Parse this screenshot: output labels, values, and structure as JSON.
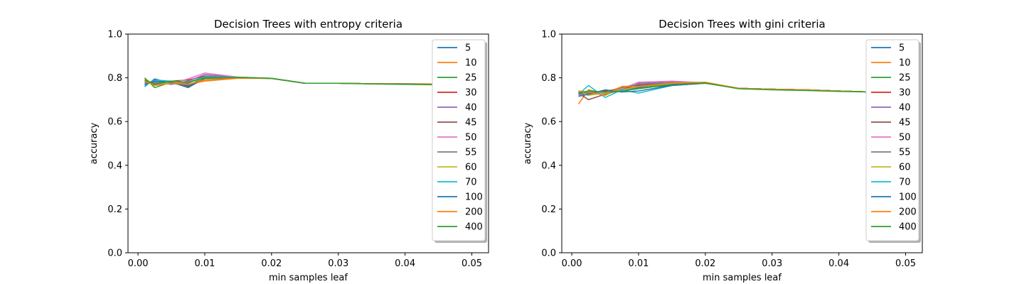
{
  "chart_data": [
    {
      "type": "line",
      "title": "Decision Trees with entropy criteria",
      "xlabel": "min samples leaf",
      "ylabel": "accuracy",
      "xlim": [
        -0.0015,
        0.0525
      ],
      "ylim": [
        0.0,
        1.0
      ],
      "xticks": [
        0.0,
        0.01,
        0.02,
        0.03,
        0.04,
        0.05
      ],
      "xtick_labels": [
        "0.00",
        "0.01",
        "0.02",
        "0.03",
        "0.04",
        "0.05"
      ],
      "yticks": [
        0.0,
        0.2,
        0.4,
        0.6,
        0.8,
        1.0
      ],
      "ytick_labels": [
        "0.0",
        "0.2",
        "0.4",
        "0.6",
        "0.8",
        "1.0"
      ],
      "grid": false,
      "legend": "upper right",
      "x": [
        0.001,
        0.0025,
        0.005,
        0.0075,
        0.01,
        0.015,
        0.02,
        0.025,
        0.03,
        0.035,
        0.04,
        0.045,
        0.05
      ],
      "series": [
        {
          "name": "5",
          "color": "#1f77b4",
          "values": [
            0.76,
            0.795,
            0.775,
            0.765,
            0.8,
            0.8,
            0.797,
            0.775,
            0.775,
            0.773,
            0.773,
            0.772,
            0.772
          ]
        },
        {
          "name": "10",
          "color": "#ff7f0e",
          "values": [
            0.795,
            0.77,
            0.775,
            0.77,
            0.785,
            0.798,
            0.797,
            0.775,
            0.775,
            0.773,
            0.772,
            0.772,
            0.772
          ]
        },
        {
          "name": "25",
          "color": "#2ca02c",
          "values": [
            0.8,
            0.755,
            0.78,
            0.775,
            0.805,
            0.803,
            0.798,
            0.775,
            0.775,
            0.773,
            0.772,
            0.772,
            0.772
          ]
        },
        {
          "name": "30",
          "color": "#d62728",
          "values": [
            0.78,
            0.775,
            0.785,
            0.79,
            0.808,
            0.801,
            0.797,
            0.775,
            0.775,
            0.773,
            0.772,
            0.772,
            0.772
          ]
        },
        {
          "name": "40",
          "color": "#9467bd",
          "values": [
            0.775,
            0.78,
            0.77,
            0.785,
            0.815,
            0.802,
            0.797,
            0.775,
            0.775,
            0.773,
            0.772,
            0.772,
            0.772
          ]
        },
        {
          "name": "45",
          "color": "#8c564b",
          "values": [
            0.785,
            0.77,
            0.78,
            0.76,
            0.8,
            0.801,
            0.797,
            0.775,
            0.775,
            0.773,
            0.772,
            0.772,
            0.772
          ]
        },
        {
          "name": "50",
          "color": "#e377c2",
          "values": [
            0.77,
            0.785,
            0.775,
            0.795,
            0.822,
            0.803,
            0.797,
            0.775,
            0.775,
            0.773,
            0.772,
            0.772,
            0.772
          ]
        },
        {
          "name": "55",
          "color": "#7f7f7f",
          "values": [
            0.78,
            0.775,
            0.785,
            0.775,
            0.805,
            0.801,
            0.797,
            0.775,
            0.775,
            0.773,
            0.772,
            0.772,
            0.772
          ]
        },
        {
          "name": "60",
          "color": "#bcbd22",
          "values": [
            0.79,
            0.765,
            0.78,
            0.78,
            0.795,
            0.8,
            0.797,
            0.775,
            0.775,
            0.773,
            0.772,
            0.772,
            0.772
          ]
        },
        {
          "name": "70",
          "color": "#17becf",
          "values": [
            0.765,
            0.79,
            0.785,
            0.78,
            0.805,
            0.802,
            0.797,
            0.775,
            0.775,
            0.773,
            0.772,
            0.772,
            0.772
          ]
        },
        {
          "name": "100",
          "color": "#1f77b4",
          "values": [
            0.77,
            0.785,
            0.78,
            0.755,
            0.798,
            0.801,
            0.797,
            0.775,
            0.775,
            0.773,
            0.772,
            0.772,
            0.772
          ]
        },
        {
          "name": "200",
          "color": "#ff7f0e",
          "values": [
            0.785,
            0.765,
            0.775,
            0.77,
            0.79,
            0.799,
            0.797,
            0.775,
            0.775,
            0.773,
            0.772,
            0.772,
            0.772
          ]
        },
        {
          "name": "400",
          "color": "#2ca02c",
          "values": [
            0.79,
            0.77,
            0.785,
            0.78,
            0.8,
            0.802,
            0.798,
            0.775,
            0.775,
            0.772,
            0.77,
            0.768,
            0.768
          ]
        }
      ]
    },
    {
      "type": "line",
      "title": "Decision Trees with gini criteria",
      "xlabel": "min samples leaf",
      "ylabel": "accuracy",
      "xlim": [
        -0.0015,
        0.0525
      ],
      "ylim": [
        0.0,
        1.0
      ],
      "xticks": [
        0.0,
        0.01,
        0.02,
        0.03,
        0.04,
        0.05
      ],
      "xtick_labels": [
        "0.00",
        "0.01",
        "0.02",
        "0.03",
        "0.04",
        "0.05"
      ],
      "yticks": [
        0.0,
        0.2,
        0.4,
        0.6,
        0.8,
        1.0
      ],
      "ytick_labels": [
        "0.0",
        "0.2",
        "0.4",
        "0.6",
        "0.8",
        "1.0"
      ],
      "grid": false,
      "legend": "upper right",
      "x": [
        0.001,
        0.0025,
        0.005,
        0.0075,
        0.01,
        0.015,
        0.02,
        0.025,
        0.03,
        0.035,
        0.04,
        0.045,
        0.05
      ],
      "series": [
        {
          "name": "5",
          "color": "#1f77b4",
          "values": [
            0.72,
            0.73,
            0.74,
            0.745,
            0.755,
            0.765,
            0.775,
            0.752,
            0.748,
            0.745,
            0.74,
            0.735,
            0.732
          ]
        },
        {
          "name": "10",
          "color": "#ff7f0e",
          "values": [
            0.68,
            0.745,
            0.73,
            0.76,
            0.765,
            0.778,
            0.778,
            0.752,
            0.748,
            0.745,
            0.74,
            0.735,
            0.732
          ]
        },
        {
          "name": "25",
          "color": "#2ca02c",
          "values": [
            0.73,
            0.74,
            0.72,
            0.755,
            0.76,
            0.77,
            0.776,
            0.752,
            0.748,
            0.745,
            0.74,
            0.735,
            0.732
          ]
        },
        {
          "name": "30",
          "color": "#d62728",
          "values": [
            0.735,
            0.72,
            0.74,
            0.75,
            0.77,
            0.775,
            0.776,
            0.752,
            0.748,
            0.745,
            0.74,
            0.735,
            0.732
          ]
        },
        {
          "name": "40",
          "color": "#9467bd",
          "values": [
            0.725,
            0.735,
            0.73,
            0.74,
            0.775,
            0.78,
            0.777,
            0.752,
            0.748,
            0.745,
            0.74,
            0.735,
            0.732
          ]
        },
        {
          "name": "45",
          "color": "#8c564b",
          "values": [
            0.73,
            0.7,
            0.725,
            0.745,
            0.765,
            0.775,
            0.776,
            0.752,
            0.748,
            0.745,
            0.74,
            0.735,
            0.732
          ]
        },
        {
          "name": "50",
          "color": "#e377c2",
          "values": [
            0.72,
            0.725,
            0.735,
            0.75,
            0.78,
            0.785,
            0.777,
            0.752,
            0.748,
            0.745,
            0.74,
            0.735,
            0.732
          ]
        },
        {
          "name": "55",
          "color": "#7f7f7f",
          "values": [
            0.735,
            0.73,
            0.725,
            0.755,
            0.77,
            0.778,
            0.776,
            0.752,
            0.748,
            0.745,
            0.74,
            0.735,
            0.732
          ]
        },
        {
          "name": "60",
          "color": "#bcbd22",
          "values": [
            0.74,
            0.72,
            0.73,
            0.745,
            0.76,
            0.774,
            0.777,
            0.752,
            0.748,
            0.745,
            0.74,
            0.735,
            0.732
          ]
        },
        {
          "name": "70",
          "color": "#17becf",
          "values": [
            0.725,
            0.765,
            0.71,
            0.745,
            0.73,
            0.765,
            0.776,
            0.752,
            0.748,
            0.745,
            0.74,
            0.735,
            0.732
          ]
        },
        {
          "name": "100",
          "color": "#1f77b4",
          "values": [
            0.715,
            0.725,
            0.745,
            0.735,
            0.74,
            0.765,
            0.775,
            0.752,
            0.748,
            0.745,
            0.74,
            0.735,
            0.732
          ]
        },
        {
          "name": "200",
          "color": "#ff7f0e",
          "values": [
            0.74,
            0.735,
            0.72,
            0.76,
            0.76,
            0.776,
            0.78,
            0.752,
            0.748,
            0.745,
            0.74,
            0.735,
            0.732
          ]
        },
        {
          "name": "400",
          "color": "#2ca02c",
          "values": [
            0.73,
            0.74,
            0.735,
            0.74,
            0.75,
            0.77,
            0.776,
            0.75,
            0.745,
            0.742,
            0.738,
            0.735,
            0.732
          ]
        }
      ]
    }
  ]
}
